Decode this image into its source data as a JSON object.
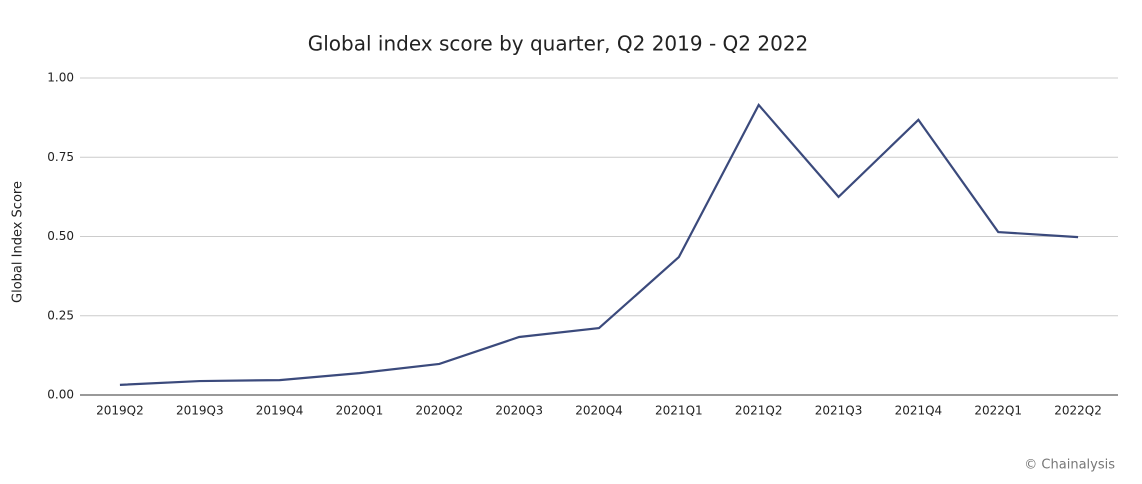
{
  "chart_data": {
    "type": "line",
    "title": "Global index score by quarter, Q2 2019 - Q2 2022",
    "y_label": "Global Index Score",
    "source": "© Chainalysis",
    "categories": [
      "2019Q2",
      "2019Q3",
      "2019Q4",
      "2020Q1",
      "2020Q2",
      "2020Q3",
      "2020Q4",
      "2021Q1",
      "2021Q2",
      "2021Q3",
      "2021Q4",
      "2022Q1",
      "2022Q2"
    ],
    "series": [
      {
        "name": "Global Index Score",
        "color": "#3b4a7c",
        "values": [
          0.032,
          0.044,
          0.047,
          0.069,
          0.098,
          0.183,
          0.211,
          0.435,
          0.915,
          0.625,
          0.868,
          0.514,
          0.498
        ]
      }
    ],
    "ylim": [
      0,
      1
    ],
    "yticks": [
      {
        "value": 0,
        "label": "0.00"
      },
      {
        "value": 0.25,
        "label": "0.25"
      },
      {
        "value": 0.5,
        "label": "0.50"
      },
      {
        "value": 0.75,
        "label": "0.75"
      },
      {
        "value": 1,
        "label": "1.00"
      }
    ],
    "grid": true
  }
}
